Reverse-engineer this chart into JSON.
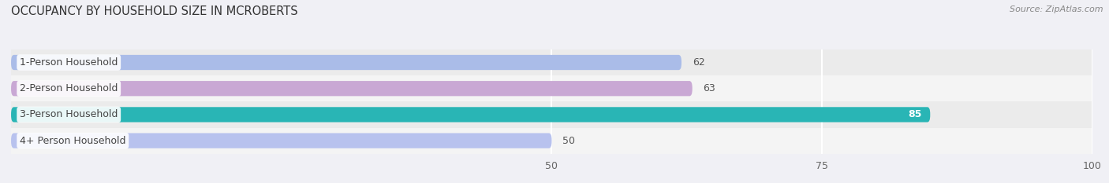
{
  "title": "OCCUPANCY BY HOUSEHOLD SIZE IN MCROBERTS",
  "source_text": "Source: ZipAtlas.com",
  "categories": [
    "1-Person Household",
    "2-Person Household",
    "3-Person Household",
    "4+ Person Household"
  ],
  "values": [
    62,
    63,
    85,
    50
  ],
  "bar_colors": [
    "#aabce8",
    "#c9a8d4",
    "#29b5b5",
    "#b8c2ee"
  ],
  "label_colors": [
    "#555555",
    "#555555",
    "#ffffff",
    "#555555"
  ],
  "xlim": [
    0,
    100
  ],
  "xstart": 0,
  "xticks": [
    50,
    75,
    100
  ],
  "title_fontsize": 10.5,
  "bar_height": 0.58,
  "label_fontsize": 9,
  "category_fontsize": 9,
  "fig_bg": "#f0f0f5",
  "row_colors": [
    "#ebebeb",
    "#f4f4f4",
    "#ebebeb",
    "#f4f4f4"
  ]
}
